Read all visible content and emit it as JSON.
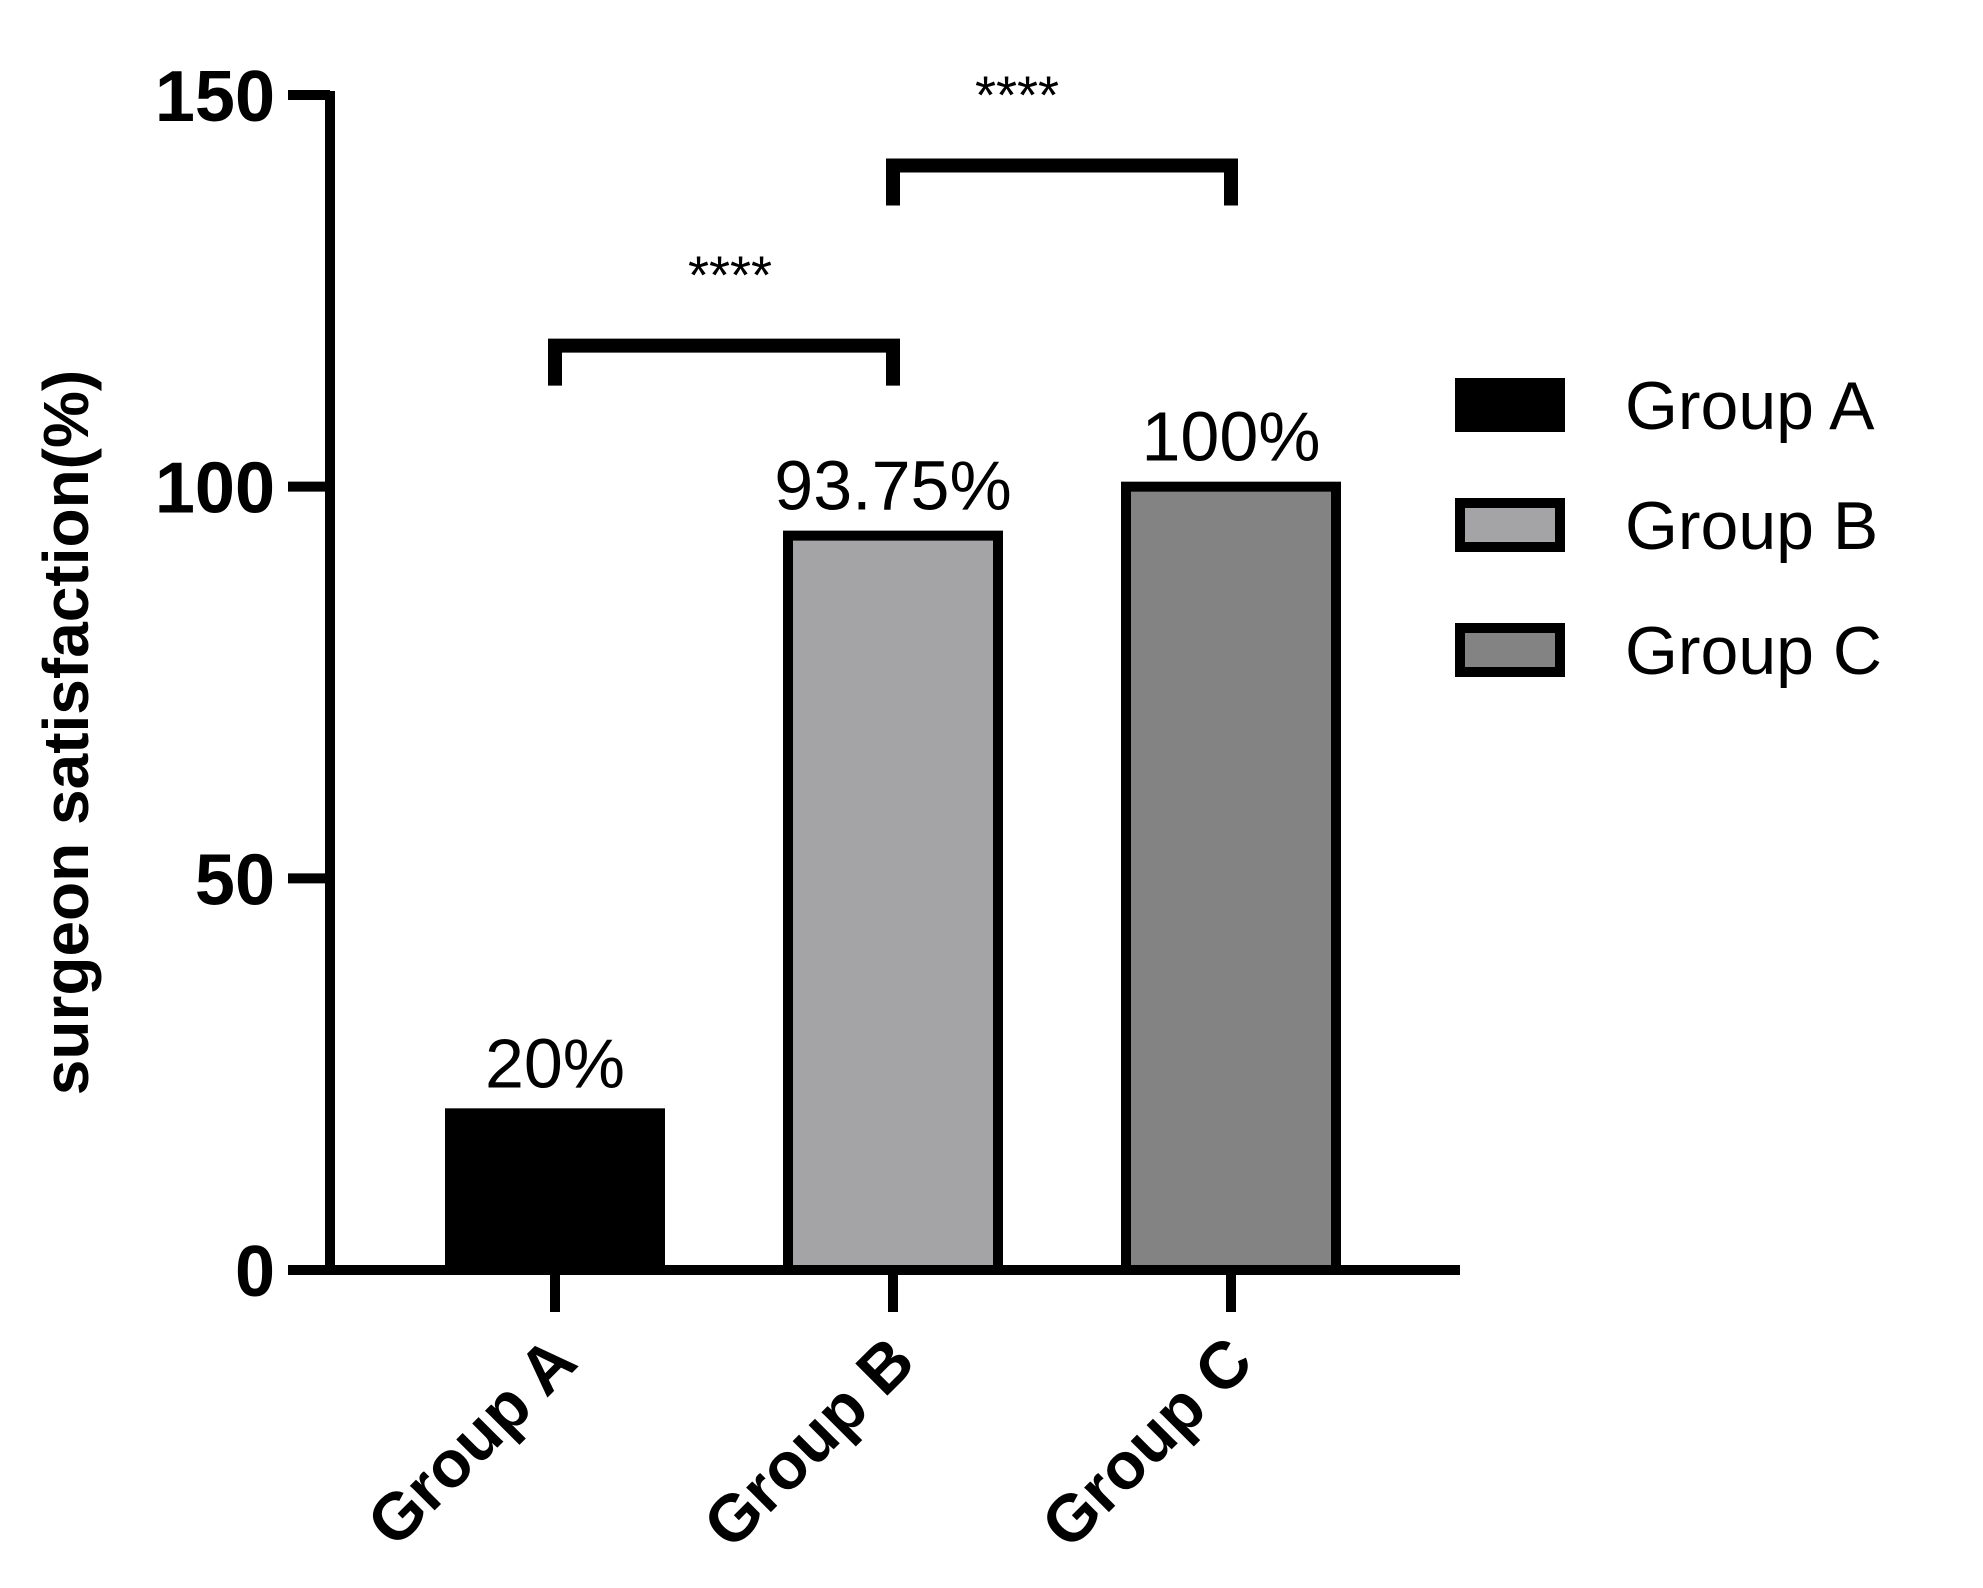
{
  "chart_data": {
    "type": "bar",
    "ylabel": "surgeon satisfaction(%)",
    "xlabel": "",
    "ylim": [
      0,
      150
    ],
    "yticks": [
      0,
      50,
      100,
      150
    ],
    "categories": [
      "Group A",
      "Group B",
      "Group C"
    ],
    "values": [
      20,
      93.75,
      100
    ],
    "data_labels": [
      "20%",
      "93.75%",
      "100%"
    ],
    "colors": [
      "#000000",
      "#a4a4a6",
      "#838383"
    ],
    "legend": {
      "position": "right",
      "entries": [
        "Group A",
        "Group B",
        "Group C"
      ]
    },
    "significance": [
      {
        "from": "Group A",
        "to": "Group B",
        "label": "****",
        "y": 118
      },
      {
        "from": "Group B",
        "to": "Group C",
        "label": "****",
        "y": 141
      }
    ],
    "grid": false
  }
}
